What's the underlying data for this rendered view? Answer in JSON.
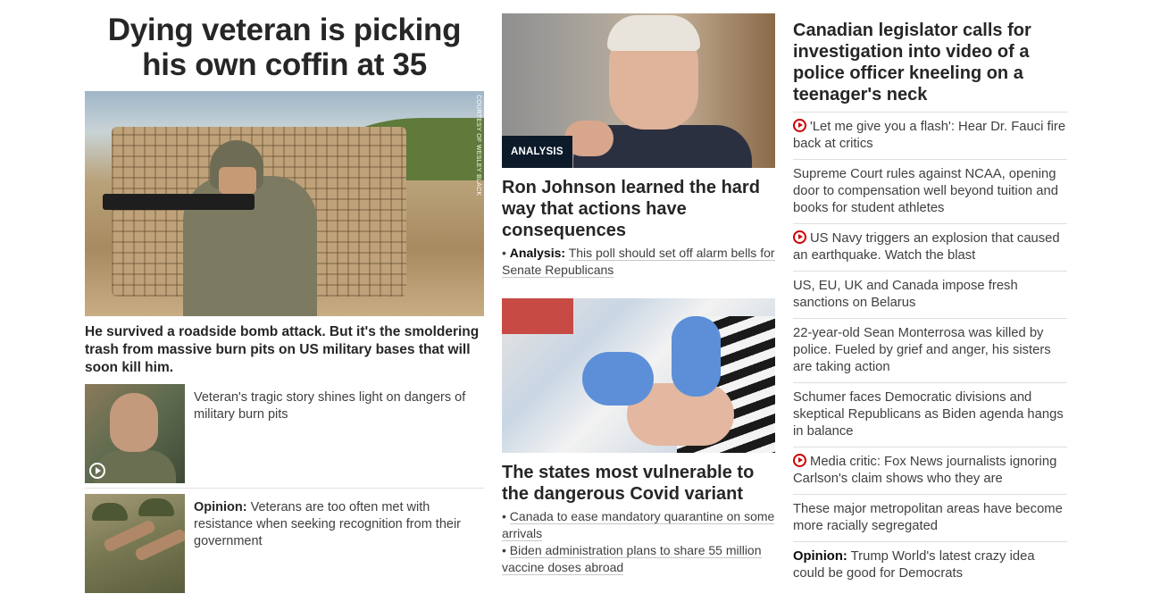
{
  "col1": {
    "headline": "Dying veteran is picking his own coffin at 35",
    "hero_credit": "COURTESY OF WESLEY BLACK",
    "hero_description": "He survived a roadside bomb attack. But it's the smoldering trash from massive burn pits on US military bases that will soon kill him.",
    "related": [
      {
        "prefix": "",
        "text": "Veteran's tragic story shines light on dangers of military burn pits",
        "video": true
      },
      {
        "prefix": "Opinion:",
        "text": " Veterans are too often met with resistance when seeking recognition from their government",
        "video": false
      }
    ]
  },
  "col2": {
    "story1": {
      "badge": "ANALYSIS",
      "title": "Ron Johnson learned the hard way that actions have consequences",
      "sub_prefix": "Analysis:",
      "sub_text": "This poll should set off alarm bells for Senate Republicans"
    },
    "story2": {
      "title": "The states most vulnerable to the dangerous Covid variant",
      "links": [
        "Canada to ease mandatory quarantine on some arrivals",
        "Biden administration plans to share 55 million vaccine doses abroad"
      ]
    }
  },
  "col3": {
    "title": "Canadian legislator calls for investigation into video of a police officer kneeling on a teenager's neck",
    "links": [
      {
        "video": true,
        "prefix": "",
        "text": "'Let me give you a flash': Hear Dr. Fauci fire back at critics"
      },
      {
        "video": false,
        "prefix": "",
        "text": "Supreme Court rules against NCAA, opening door to compensation well beyond tuition and books for student athletes"
      },
      {
        "video": true,
        "prefix": "",
        "text": "US Navy triggers an explosion that caused an earthquake. Watch the blast"
      },
      {
        "video": false,
        "prefix": "",
        "text": "US, EU, UK and Canada impose fresh sanctions on Belarus"
      },
      {
        "video": false,
        "prefix": "",
        "text": "22-year-old Sean Monterrosa was killed by police. Fueled by grief and anger, his sisters are taking action"
      },
      {
        "video": false,
        "prefix": "",
        "text": "Schumer faces Democratic divisions and skeptical Republicans as Biden agenda hangs in balance"
      },
      {
        "video": true,
        "prefix": "",
        "text": "Media critic: Fox News journalists ignoring Carlson's claim shows who they are"
      },
      {
        "video": false,
        "prefix": "",
        "text": "These major metropolitan areas have become more racially segregated"
      },
      {
        "video": false,
        "prefix": "Opinion:",
        "text": " Trump World's latest crazy idea could be good for Democrats"
      }
    ]
  },
  "colors": {
    "video_red": "#cc0000",
    "badge_bg": "#0c1a2a",
    "text": "#262626"
  }
}
